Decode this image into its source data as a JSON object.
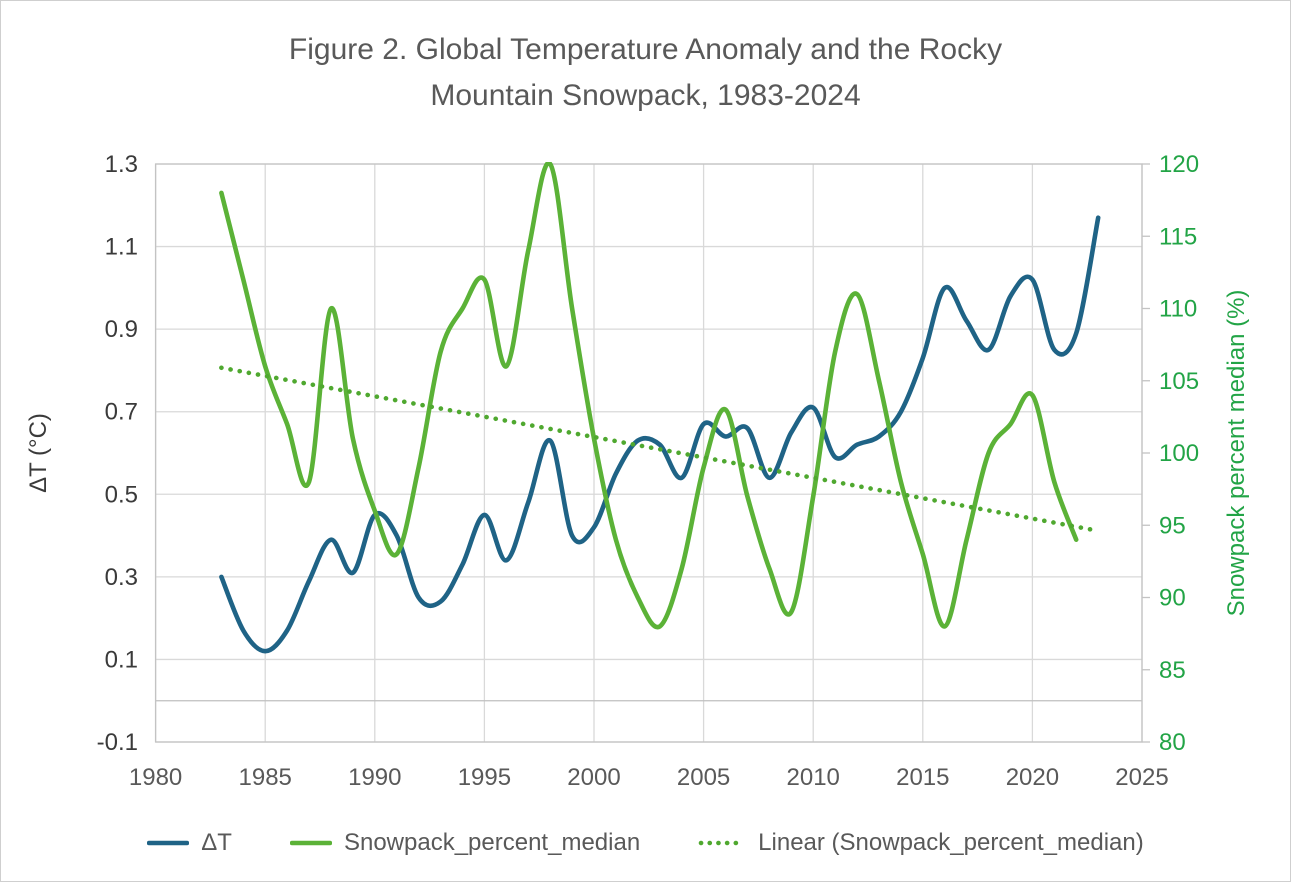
{
  "title_lines": [
    "Figure 2. Global Temperature Anomaly and the Rocky",
    "Mountain Snowpack, 1983-2024"
  ],
  "colors": {
    "temp_line": "#1f6386",
    "snow_line": "#5bb237",
    "trend_line": "#4fa82f",
    "right_axis_text": "#22a446",
    "left_tick_text": "#3a3a3a",
    "x_tick_text": "#595959",
    "gridline": "#d9d9d9",
    "plot_border": "#c3c3c3",
    "zero_axis_line": "#bfbfbf"
  },
  "legend": {
    "items": [
      {
        "label": "ΔT",
        "swatch": "solid-blue"
      },
      {
        "label": "Snowpack_percent_median",
        "swatch": "solid-green"
      },
      {
        "label": "Linear (Snowpack_percent_median)",
        "swatch": "dotted-green"
      }
    ]
  },
  "chart_data": {
    "type": "line",
    "title": "Figure 2. Global Temperature Anomaly and the Rocky Mountain Snowpack, 1983-2024",
    "grid": true,
    "legend_position": "bottom",
    "x_axis": {
      "range": [
        1980,
        2025
      ],
      "ticks": [
        1980,
        1985,
        1990,
        1995,
        2000,
        2005,
        2010,
        2015,
        2020,
        2025
      ]
    },
    "y_left": {
      "label": "ΔT (°C)",
      "range": [
        -0.1,
        1.3
      ],
      "ticks": [
        -0.1,
        0.1,
        0.3,
        0.5,
        0.7,
        0.9,
        1.1,
        1.3
      ]
    },
    "y_right": {
      "label": "Snowpack percent median (%)",
      "range": [
        80,
        120
      ],
      "ticks": [
        80,
        85,
        90,
        95,
        100,
        105,
        110,
        115,
        120
      ]
    },
    "series": [
      {
        "name": "ΔT",
        "axis": "left",
        "style": "smooth-solid",
        "x": [
          1983,
          1984,
          1985,
          1986,
          1987,
          1988,
          1989,
          1990,
          1991,
          1992,
          1993,
          1994,
          1995,
          1996,
          1997,
          1998,
          1999,
          2000,
          2001,
          2002,
          2003,
          2004,
          2005,
          2006,
          2007,
          2008,
          2009,
          2010,
          2011,
          2012,
          2013,
          2014,
          2015,
          2016,
          2017,
          2018,
          2019,
          2020,
          2021,
          2022,
          2023
        ],
        "values": [
          0.3,
          0.17,
          0.12,
          0.17,
          0.29,
          0.39,
          0.31,
          0.45,
          0.4,
          0.25,
          0.24,
          0.33,
          0.45,
          0.34,
          0.48,
          0.63,
          0.4,
          0.42,
          0.55,
          0.63,
          0.62,
          0.54,
          0.67,
          0.64,
          0.66,
          0.54,
          0.65,
          0.71,
          0.59,
          0.62,
          0.64,
          0.7,
          0.83,
          1.0,
          0.92,
          0.85,
          0.98,
          1.02,
          0.85,
          0.89,
          1.17
        ]
      },
      {
        "name": "Snowpack_percent_median",
        "axis": "right",
        "style": "smooth-solid",
        "x": [
          1983,
          1984,
          1985,
          1986,
          1987,
          1988,
          1989,
          1990,
          1991,
          1992,
          1993,
          1994,
          1995,
          1996,
          1997,
          1998,
          1999,
          2000,
          2001,
          2002,
          2003,
          2004,
          2005,
          2006,
          2007,
          2008,
          2009,
          2010,
          2011,
          2012,
          2013,
          2014,
          2015,
          2016,
          2017,
          2018,
          2019,
          2020,
          2021,
          2022
        ],
        "values": [
          118,
          112,
          106,
          102,
          98,
          110,
          101,
          96,
          93,
          99,
          107,
          110,
          112,
          106,
          114,
          120,
          110,
          101,
          94,
          90,
          88,
          92,
          99,
          103,
          97,
          92,
          89,
          97,
          107,
          111,
          105,
          98,
          93,
          88,
          94,
          100,
          102,
          104,
          98,
          94
        ]
      },
      {
        "name": "Linear (Snowpack_percent_median)",
        "axis": "right",
        "style": "dotted-straight",
        "trend": {
          "x_start": 1983,
          "value_start": 105.9,
          "x_end": 2022.7,
          "value_end": 94.7
        }
      }
    ]
  }
}
